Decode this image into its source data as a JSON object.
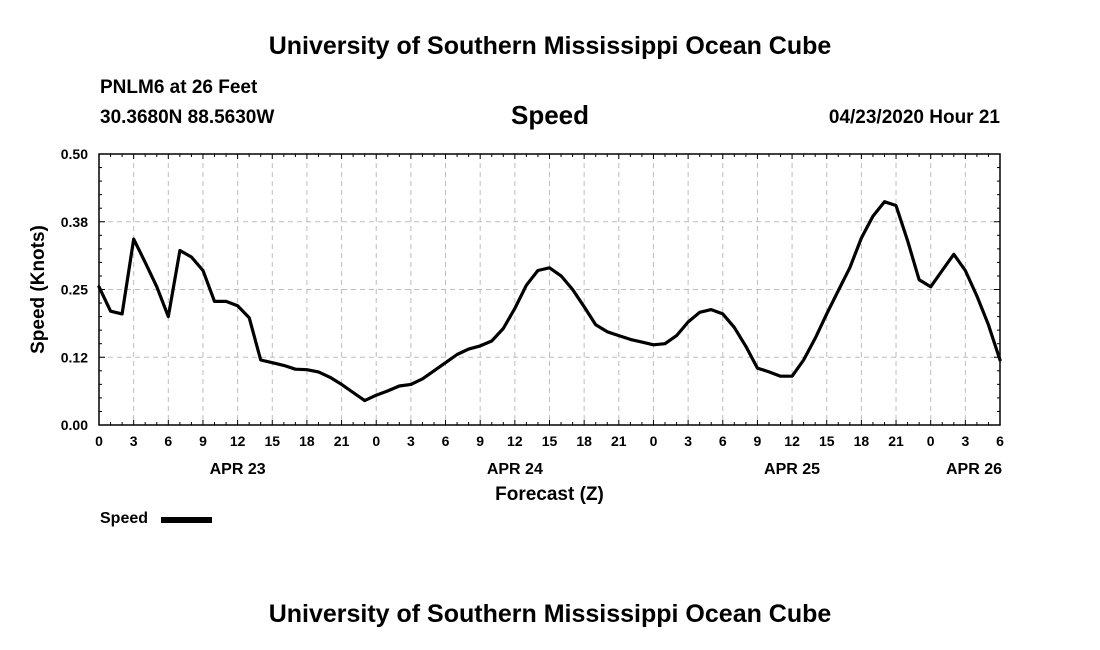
{
  "header": {
    "title": "University of Southern Mississippi Ocean Cube",
    "station": "PNLM6 at 26 Feet",
    "coordinates": "30.3680N 88.5630W",
    "variable": "Speed",
    "issued": "04/23/2020 Hour 21"
  },
  "footer": {
    "title": "University of Southern Mississippi Ocean Cube"
  },
  "legend": {
    "label": "Speed",
    "placement": "bottom-left"
  },
  "chart_data": {
    "type": "line",
    "title": "Speed",
    "xlabel": "Forecast (Z)",
    "ylabel": "Speed (Knots)",
    "ylim": [
      0,
      0.5
    ],
    "xlim": [
      "04/23/2020 00Z",
      "04/26/2020 06Z"
    ],
    "yticks": [
      "0.00",
      "0.12",
      "0.25",
      "0.38",
      "0.50"
    ],
    "xtick_labels": [
      "0",
      "3",
      "6",
      "9",
      "12",
      "15",
      "18",
      "21",
      "0",
      "3",
      "6",
      "9",
      "12",
      "15",
      "18",
      "21",
      "0",
      "3",
      "6",
      "9",
      "12",
      "15",
      "18",
      "21",
      "0",
      "3",
      "6"
    ],
    "date_labels": [
      "APR 23",
      "APR 24",
      "APR 25",
      "APR 26"
    ],
    "grid": true,
    "series": [
      {
        "name": "Speed",
        "color": "#000000",
        "points": [
          [
            "04/23/2020 00Z",
            0.255
          ],
          [
            "04/23/2020 01Z",
            0.21
          ],
          [
            "04/23/2020 02Z",
            0.205
          ],
          [
            "04/23/2020 03Z",
            0.343
          ],
          [
            "04/23/2020 04Z",
            0.3
          ],
          [
            "04/23/2020 05Z",
            0.255
          ],
          [
            "04/23/2020 06Z",
            0.2
          ],
          [
            "04/23/2020 07Z",
            0.322
          ],
          [
            "04/23/2020 08Z",
            0.31
          ],
          [
            "04/23/2020 09Z",
            0.285
          ],
          [
            "04/23/2020 10Z",
            0.228
          ],
          [
            "04/23/2020 11Z",
            0.228
          ],
          [
            "04/23/2020 12Z",
            0.22
          ],
          [
            "04/23/2020 13Z",
            0.198
          ],
          [
            "04/23/2020 14Z",
            0.12
          ],
          [
            "04/23/2020 15Z",
            0.115
          ],
          [
            "04/23/2020 16Z",
            0.11
          ],
          [
            "04/23/2020 17Z",
            0.103
          ],
          [
            "04/23/2020 18Z",
            0.102
          ],
          [
            "04/23/2020 19Z",
            0.098
          ],
          [
            "04/23/2020 20Z",
            0.088
          ],
          [
            "04/23/2020 21Z",
            0.075
          ],
          [
            "04/23/2020 22Z",
            0.06
          ],
          [
            "04/23/2020 23Z",
            0.045
          ],
          [
            "04/24/2020 00Z",
            0.055
          ],
          [
            "04/24/2020 01Z",
            0.063
          ],
          [
            "04/24/2020 02Z",
            0.072
          ],
          [
            "04/24/2020 03Z",
            0.075
          ],
          [
            "04/24/2020 04Z",
            0.085
          ],
          [
            "04/24/2020 05Z",
            0.1
          ],
          [
            "04/24/2020 06Z",
            0.115
          ],
          [
            "04/24/2020 07Z",
            0.13
          ],
          [
            "04/24/2020 08Z",
            0.14
          ],
          [
            "04/24/2020 09Z",
            0.146
          ],
          [
            "04/24/2020 10Z",
            0.155
          ],
          [
            "04/24/2020 11Z",
            0.178
          ],
          [
            "04/24/2020 12Z",
            0.215
          ],
          [
            "04/24/2020 13Z",
            0.258
          ],
          [
            "04/24/2020 14Z",
            0.285
          ],
          [
            "04/24/2020 15Z",
            0.29
          ],
          [
            "04/24/2020 16Z",
            0.275
          ],
          [
            "04/24/2020 17Z",
            0.25
          ],
          [
            "04/24/2020 18Z",
            0.218
          ],
          [
            "04/24/2020 19Z",
            0.185
          ],
          [
            "04/24/2020 20Z",
            0.172
          ],
          [
            "04/24/2020 21Z",
            0.165
          ],
          [
            "04/24/2020 22Z",
            0.158
          ],
          [
            "04/24/2020 23Z",
            0.153
          ],
          [
            "04/25/2020 00Z",
            0.148
          ],
          [
            "04/25/2020 01Z",
            0.15
          ],
          [
            "04/25/2020 02Z",
            0.165
          ],
          [
            "04/25/2020 03Z",
            0.19
          ],
          [
            "04/25/2020 04Z",
            0.208
          ],
          [
            "04/25/2020 05Z",
            0.213
          ],
          [
            "04/25/2020 06Z",
            0.205
          ],
          [
            "04/25/2020 07Z",
            0.18
          ],
          [
            "04/25/2020 08Z",
            0.145
          ],
          [
            "04/25/2020 09Z",
            0.105
          ],
          [
            "04/25/2020 10Z",
            0.098
          ],
          [
            "04/25/2020 11Z",
            0.09
          ],
          [
            "04/25/2020 12Z",
            0.09
          ],
          [
            "04/25/2020 13Z",
            0.12
          ],
          [
            "04/25/2020 14Z",
            0.16
          ],
          [
            "04/25/2020 15Z",
            0.205
          ],
          [
            "04/25/2020 16Z",
            0.248
          ],
          [
            "04/25/2020 17Z",
            0.29
          ],
          [
            "04/25/2020 18Z",
            0.345
          ],
          [
            "04/25/2020 19Z",
            0.385
          ],
          [
            "04/25/2020 20Z",
            0.412
          ],
          [
            "04/25/2020 21Z",
            0.405
          ],
          [
            "04/25/2020 22Z",
            0.34
          ],
          [
            "04/25/2020 23Z",
            0.268
          ],
          [
            "04/26/2020 00Z",
            0.255
          ],
          [
            "04/26/2020 01Z",
            0.285
          ],
          [
            "04/26/2020 02Z",
            0.315
          ],
          [
            "04/26/2020 03Z",
            0.285
          ],
          [
            "04/26/2020 04Z",
            0.238
          ],
          [
            "04/26/2020 05Z",
            0.185
          ],
          [
            "04/26/2020 06Z",
            0.12
          ]
        ]
      }
    ]
  }
}
